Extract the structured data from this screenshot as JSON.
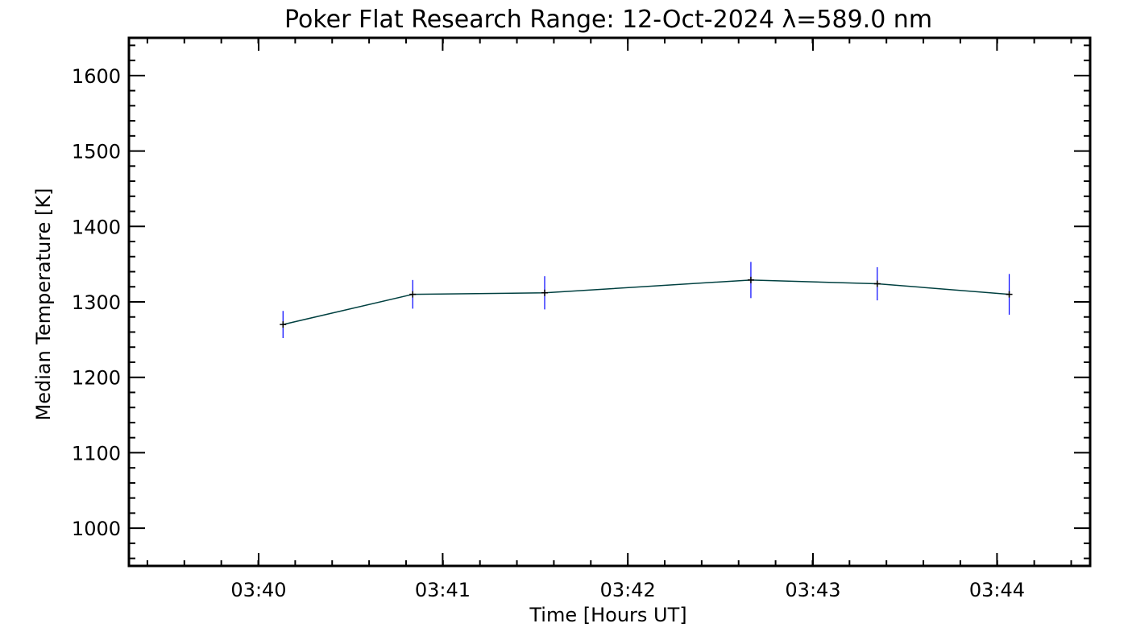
{
  "chart_data": {
    "type": "line",
    "title": "Poker Flat Research Range: 12-Oct-2024 λ=589.0 nm",
    "xlabel": "Time [Hours UT]",
    "ylabel": "Median Temperature [K]",
    "xlim": [
      3.655,
      3.7417
    ],
    "ylim": [
      950,
      1650
    ],
    "x_ticks": [
      {
        "value": 3.6667,
        "label": "03:40"
      },
      {
        "value": 3.6833,
        "label": "03:41"
      },
      {
        "value": 3.7,
        "label": "03:42"
      },
      {
        "value": 3.7167,
        "label": "03:43"
      },
      {
        "value": 3.7333,
        "label": "03:44"
      }
    ],
    "y_ticks": [
      {
        "value": 1000,
        "label": "1000"
      },
      {
        "value": 1100,
        "label": "1100"
      },
      {
        "value": 1200,
        "label": "1200"
      },
      {
        "value": 1300,
        "label": "1300"
      },
      {
        "value": 1400,
        "label": "1400"
      },
      {
        "value": 1500,
        "label": "1500"
      },
      {
        "value": 1600,
        "label": "1600"
      }
    ],
    "x_minor_step": 0.003333,
    "y_minor_step": 20,
    "grid": false,
    "series": [
      {
        "name": "median-temperature",
        "x": [
          3.6689,
          3.6806,
          3.6925,
          3.7111,
          3.7225,
          3.7344
        ],
        "values": [
          1270,
          1310,
          1312,
          1329,
          1324,
          1310
        ],
        "errors": [
          18,
          19,
          22,
          24,
          22,
          27
        ],
        "line_color": "#004040",
        "marker_color": "#000000",
        "error_color": "#0000ff"
      }
    ]
  }
}
